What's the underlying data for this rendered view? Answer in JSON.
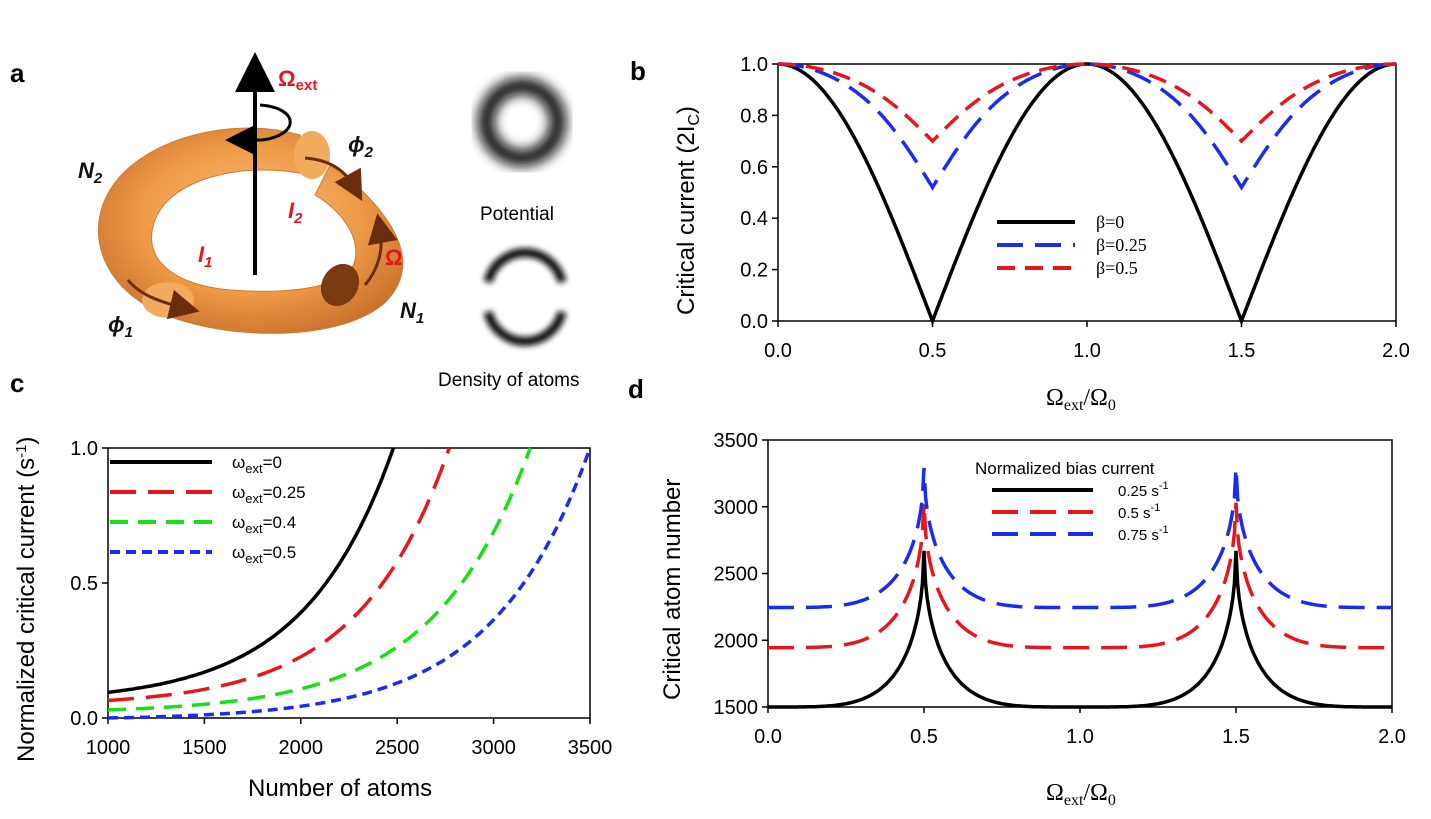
{
  "panel_a": {
    "letter": "a",
    "omega_ext": "Ω",
    "omega_ext_sub": "ext",
    "N2": "N",
    "N2_sub": "2",
    "N1": "N",
    "N1_sub": "1",
    "I1": "I",
    "I1_sub": "1",
    "I2": "I",
    "I2_sub": "2",
    "phi1": "ϕ",
    "phi1_sub": "1",
    "phi2": "ϕ",
    "phi2_sub": "2",
    "omega": "Ω",
    "potential_label": "Potential",
    "density_label": "Density of atoms",
    "colors": {
      "torus": "#f0a050",
      "annotation": "#e8161b"
    }
  },
  "chart_data": [
    {
      "panel": "b",
      "type": "line",
      "xlabel": "Ω",
      "xlabel_sub": "ext",
      "xlabel_tail": "/Ω",
      "xlabel_tail_sub": "0",
      "ylabel": "Critical current (2I",
      "ylabel_sub": "C",
      "ylabel_tail": ")",
      "xlim": [
        0,
        2
      ],
      "ylim": [
        0,
        1
      ],
      "xticks": [
        "0.0",
        "0.5",
        "1.0",
        "1.5",
        "2.0"
      ],
      "yticks": [
        "0.0",
        "0.2",
        "0.4",
        "0.6",
        "0.8",
        "1.0"
      ],
      "legend_position": "center",
      "series": [
        {
          "name": "β=0",
          "color": "#000000",
          "dash": "solid",
          "x": [
            0,
            0.5,
            1.0,
            1.5,
            2.0
          ],
          "y": [
            1.0,
            0.0,
            1.0,
            0.0,
            1.0
          ],
          "formula": "|cos(pi x)|"
        },
        {
          "name": "β=0.25",
          "color": "#1c2bf0",
          "dash": "long",
          "x": [
            0,
            0.5,
            1.0,
            1.5,
            2.0
          ],
          "y": [
            1.0,
            0.52,
            1.0,
            0.52,
            1.0
          ]
        },
        {
          "name": "β=0.5",
          "color": "#e8161b",
          "dash": "medium",
          "x": [
            0,
            0.5,
            1.0,
            1.5,
            2.0
          ],
          "y": [
            1.0,
            0.7,
            1.0,
            0.7,
            1.0
          ]
        }
      ]
    },
    {
      "panel": "c",
      "type": "line",
      "xlabel": "Number of atoms",
      "ylabel": "Normalized critical current (s",
      "ylabel_sup": "-1",
      "ylabel_tail": ")",
      "xlim": [
        1000,
        3500
      ],
      "ylim": [
        0,
        1
      ],
      "xticks": [
        "1000",
        "1500",
        "2000",
        "2500",
        "3000",
        "3500"
      ],
      "yticks": [
        "0.0",
        "0.5",
        "1.0"
      ],
      "legend_position": "top-left",
      "series": [
        {
          "name": "ω",
          "name_sub": "ext",
          "name_tail": "=0",
          "color": "#000000",
          "dash": "solid",
          "x_start": 1000,
          "x_end": 2480,
          "y_start": 0.095,
          "y_end": 1.0
        },
        {
          "name": "ω",
          "name_sub": "ext",
          "name_tail": "=0.25",
          "color": "#e8161b",
          "dash": "long",
          "x_start": 1000,
          "x_end": 2770,
          "y_start": 0.065,
          "y_end": 1.0
        },
        {
          "name": "ω",
          "name_sub": "ext",
          "name_tail": "=0.4",
          "color": "#16e016",
          "dash": "medium",
          "x_start": 1000,
          "x_end": 3190,
          "y_start": 0.03,
          "y_end": 1.0
        },
        {
          "name": "ω",
          "name_sub": "ext",
          "name_tail": "=0.5",
          "color": "#1c2bf0",
          "dash": "short",
          "x_start": 1000,
          "x_end": 3500,
          "y_start": 0.0,
          "y_end": 1.0
        }
      ]
    },
    {
      "panel": "d",
      "type": "line",
      "xlabel": "Ω",
      "xlabel_sub": "ext",
      "xlabel_tail": "/Ω",
      "xlabel_tail_sub": "0",
      "ylabel": "Critical atom number",
      "xlim": [
        0,
        2
      ],
      "ylim": [
        1500,
        3500
      ],
      "xticks": [
        "0.0",
        "0.5",
        "1.0",
        "1.5",
        "2.0"
      ],
      "yticks": [
        "1500",
        "2000",
        "2500",
        "3000",
        "3500"
      ],
      "legend_title": "Normalized bias current",
      "legend_position": "top-center",
      "series": [
        {
          "name": "0.25 s",
          "name_sup": "-1",
          "color": "#000000",
          "dash": "solid",
          "base": 1500,
          "peak": 2670
        },
        {
          "name": "0.5 s",
          "name_sup": "-1",
          "color": "#e8161b",
          "dash": "long",
          "base": 1945,
          "peak": 3030
        },
        {
          "name": "0.75 s",
          "name_sup": "-1",
          "color": "#1c2bf0",
          "dash": "long",
          "base": 2245,
          "peak": 3290
        }
      ]
    }
  ]
}
